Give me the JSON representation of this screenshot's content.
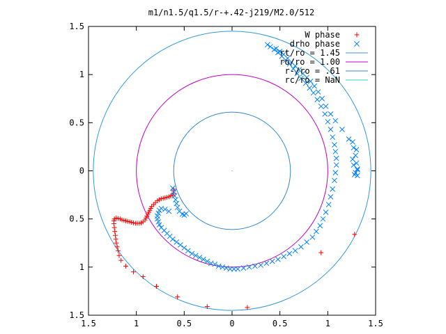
{
  "chart_data": {
    "type": "scatter",
    "title": "m1/n1.5/q1.5/r-+.42-j219/M2.0/512",
    "xlabel": "",
    "ylabel": "",
    "xlim": [
      -1.5,
      1.5
    ],
    "ylim": [
      -1.5,
      1.5
    ],
    "x_tick_labels": [
      "1.5",
      "1",
      "0.5",
      "0",
      "0.5",
      "1",
      "1.5"
    ],
    "y_tick_labels": [
      "1.5",
      "1",
      "0.5",
      "0",
      "0.5",
      "1",
      "1.5"
    ],
    "x_ticks": [
      -1.5,
      -1,
      -0.5,
      0,
      0.5,
      1,
      1.5
    ],
    "y_ticks": [
      1.5,
      1,
      0.5,
      0,
      -0.5,
      -1,
      -1.5
    ],
    "legend_position": "top-right",
    "grid": false,
    "series": [
      {
        "name": "W phase",
        "marker": "plus",
        "color": "#ff0000",
        "points": [
          [
            0.93,
            -0.85
          ],
          [
            0.16,
            -1.42
          ],
          [
            -0.26,
            -1.41
          ],
          [
            -0.57,
            -1.31
          ],
          [
            -0.79,
            -1.2
          ],
          [
            -0.93,
            -1.1
          ],
          [
            -1.03,
            -1.05
          ],
          [
            -1.11,
            -0.99
          ],
          [
            -1.16,
            -0.93
          ],
          [
            -1.18,
            -0.88
          ],
          [
            -1.19,
            -0.83
          ],
          [
            -1.2,
            -0.79
          ],
          [
            -1.21,
            -0.75
          ],
          [
            -1.215,
            -0.71
          ],
          [
            -1.22,
            -0.67
          ],
          [
            -1.225,
            -0.63
          ],
          [
            -1.23,
            -0.59
          ],
          [
            -1.235,
            -0.55
          ],
          [
            -1.235,
            -0.52
          ],
          [
            -1.23,
            -0.5
          ],
          [
            -1.21,
            -0.49
          ],
          [
            -1.19,
            -0.495
          ],
          [
            -1.17,
            -0.5
          ],
          [
            -1.15,
            -0.51
          ],
          [
            -1.13,
            -0.515
          ],
          [
            -1.11,
            -0.52
          ],
          [
            -1.09,
            -0.525
          ],
          [
            -1.07,
            -0.53
          ],
          [
            -1.05,
            -0.535
          ],
          [
            -1.03,
            -0.54
          ],
          [
            -1.01,
            -0.545
          ],
          [
            -0.99,
            -0.545
          ],
          [
            -0.97,
            -0.545
          ],
          [
            -0.95,
            -0.54
          ],
          [
            -0.93,
            -0.53
          ],
          [
            -0.91,
            -0.51
          ],
          [
            -0.9,
            -0.49
          ],
          [
            -0.89,
            -0.47
          ],
          [
            -0.88,
            -0.45
          ],
          [
            -0.87,
            -0.43
          ],
          [
            -0.86,
            -0.41
          ],
          [
            -0.85,
            -0.39
          ],
          [
            -0.84,
            -0.37
          ],
          [
            -0.82,
            -0.35
          ],
          [
            -0.8,
            -0.33
          ],
          [
            -0.78,
            -0.31
          ],
          [
            -0.76,
            -0.3
          ],
          [
            -0.74,
            -0.29
          ],
          [
            -0.72,
            -0.285
          ],
          [
            -0.7,
            -0.28
          ],
          [
            -0.68,
            -0.275
          ],
          [
            -0.66,
            -0.27
          ],
          [
            -0.64,
            -0.26
          ],
          [
            -0.62,
            -0.25
          ],
          [
            -0.61,
            -0.23
          ],
          [
            -0.61,
            -0.21
          ],
          [
            -0.61,
            -0.19
          ],
          [
            1.28,
            -0.66
          ]
        ]
      },
      {
        "name": "drho phase",
        "marker": "x",
        "color": "#0080ff",
        "points": [
          [
            -0.62,
            -0.18
          ],
          [
            -0.61,
            -0.22
          ],
          [
            -0.6,
            -0.26
          ],
          [
            -0.59,
            -0.3
          ],
          [
            -0.58,
            -0.34
          ],
          [
            -0.57,
            -0.38
          ],
          [
            -0.55,
            -0.42
          ],
          [
            -0.52,
            -0.45
          ],
          [
            -0.5,
            -0.46
          ],
          [
            -0.48,
            -0.445
          ],
          [
            -0.66,
            -0.42
          ],
          [
            -0.7,
            -0.4
          ],
          [
            -0.74,
            -0.39
          ],
          [
            -0.76,
            -0.41
          ],
          [
            -0.77,
            -0.44
          ],
          [
            -0.78,
            -0.47
          ],
          [
            -0.78,
            -0.5
          ],
          [
            -0.77,
            -0.53
          ],
          [
            -0.76,
            -0.56
          ],
          [
            -0.74,
            -0.59
          ],
          [
            -0.71,
            -0.62
          ],
          [
            -0.68,
            -0.65
          ],
          [
            -0.65,
            -0.68
          ],
          [
            -0.62,
            -0.71
          ],
          [
            -0.58,
            -0.74
          ],
          [
            -0.54,
            -0.77
          ],
          [
            -0.5,
            -0.8
          ],
          [
            -0.46,
            -0.83
          ],
          [
            -0.42,
            -0.86
          ],
          [
            -0.38,
            -0.88
          ],
          [
            -0.34,
            -0.9
          ],
          [
            -0.3,
            -0.92
          ],
          [
            -0.26,
            -0.94
          ],
          [
            -0.22,
            -0.96
          ],
          [
            -0.18,
            -0.97
          ],
          [
            -0.14,
            -0.99
          ],
          [
            -0.1,
            -1.0
          ],
          [
            -0.06,
            -1.01
          ],
          [
            -0.02,
            -1.02
          ],
          [
            0.02,
            -1.02
          ],
          [
            0.06,
            -1.02
          ],
          [
            0.12,
            -1.01
          ],
          [
            0.18,
            -1.0
          ],
          [
            0.24,
            -0.99
          ],
          [
            0.3,
            -0.98
          ],
          [
            0.36,
            -0.96
          ],
          [
            0.42,
            -0.94
          ],
          [
            0.48,
            -0.92
          ],
          [
            0.54,
            -0.89
          ],
          [
            0.6,
            -0.86
          ],
          [
            0.66,
            -0.83
          ],
          [
            0.72,
            -0.79
          ],
          [
            0.78,
            -0.74
          ],
          [
            0.84,
            -0.69
          ],
          [
            0.88,
            -0.63
          ],
          [
            0.92,
            -0.57
          ],
          [
            0.95,
            -0.5
          ],
          [
            0.98,
            -0.43
          ],
          [
            1.01,
            -0.35
          ],
          [
            1.03,
            -0.27
          ],
          [
            1.05,
            -0.19
          ],
          [
            1.07,
            -0.1
          ],
          [
            1.08,
            -0.02
          ],
          [
            1.09,
            0.06
          ],
          [
            1.09,
            0.13
          ],
          [
            1.08,
            0.2
          ],
          [
            1.07,
            0.27
          ],
          [
            1.05,
            0.35
          ],
          [
            1.03,
            0.43
          ],
          [
            1.0,
            0.51
          ],
          [
            0.97,
            0.59
          ],
          [
            0.93,
            0.67
          ],
          [
            0.89,
            0.74
          ],
          [
            0.85,
            0.81
          ],
          [
            0.81,
            0.86
          ],
          [
            0.77,
            0.91
          ],
          [
            0.72,
            0.96
          ],
          [
            0.68,
            1.01
          ],
          [
            0.64,
            1.06
          ],
          [
            0.6,
            1.11
          ],
          [
            0.56,
            1.15
          ],
          [
            0.52,
            1.19
          ],
          [
            0.48,
            1.23
          ],
          [
            0.44,
            1.26
          ],
          [
            0.4,
            1.29
          ],
          [
            0.37,
            1.31
          ],
          [
            0.46,
            1.27
          ],
          [
            0.5,
            1.24
          ],
          [
            0.54,
            1.21
          ],
          [
            0.58,
            1.17
          ],
          [
            0.62,
            1.13
          ],
          [
            0.66,
            1.09
          ],
          [
            0.7,
            1.05
          ],
          [
            0.74,
            1.01
          ],
          [
            0.78,
            0.97
          ],
          [
            0.82,
            0.93
          ],
          [
            0.86,
            0.88
          ],
          [
            0.9,
            0.82
          ],
          [
            0.94,
            0.75
          ],
          [
            0.98,
            0.67
          ],
          [
            1.03,
            0.59
          ],
          [
            1.08,
            0.52
          ],
          [
            1.15,
            0.43
          ],
          [
            1.22,
            0.33
          ],
          [
            1.26,
            0.3
          ],
          [
            1.27,
            0.24
          ],
          [
            1.29,
            0.16
          ],
          [
            1.3,
            0.08
          ],
          [
            1.31,
            0.01
          ],
          [
            1.31,
            -0.05
          ],
          [
            1.29,
            -0.02
          ],
          [
            1.27,
            0.06
          ],
          [
            1.26,
            0.12
          ],
          [
            1.3,
            0.22
          ],
          [
            1.31,
            0.02
          ],
          [
            1.28,
            -0.04
          ]
        ]
      }
    ],
    "circles": [
      {
        "name": "rt/ro = 1.45",
        "radius": 1.45,
        "color": "#3399dd"
      },
      {
        "name": "ro/ro = 1.00",
        "radius": 1.0,
        "color": "#c000c0"
      },
      {
        "name": "r-/ro = .61",
        "radius": 0.61,
        "color": "#3388cc"
      },
      {
        "name": "rc/ro = NaN",
        "radius": null,
        "color": "#33cccc"
      }
    ]
  }
}
